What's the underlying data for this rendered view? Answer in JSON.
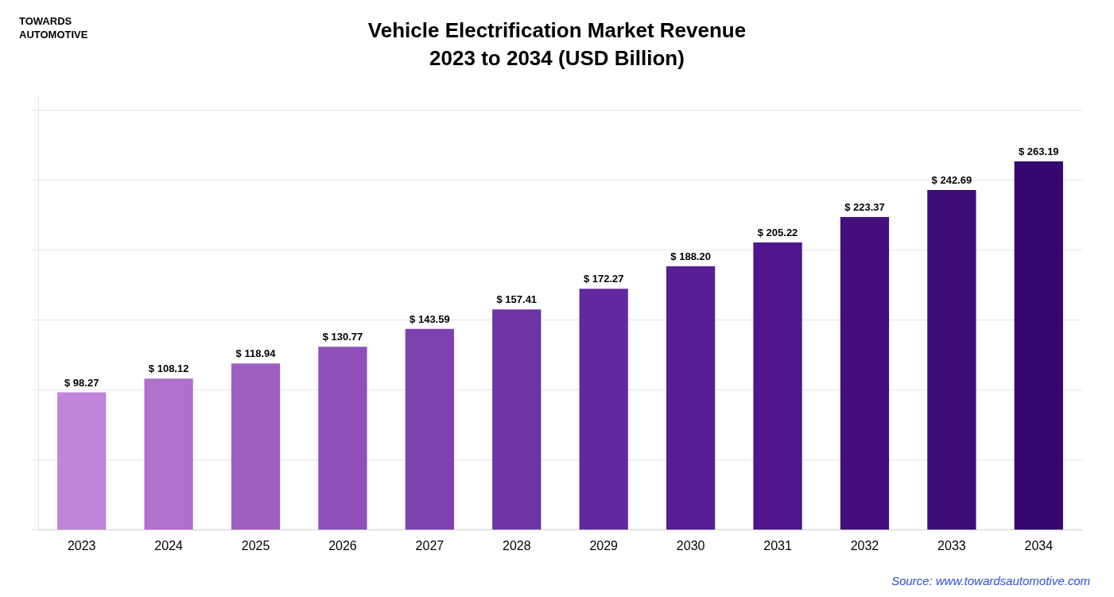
{
  "chart_data": {
    "type": "bar",
    "title": "Vehicle Electrification Market Revenue",
    "subtitle": "2023 to 2034 (USD Billion)",
    "categories": [
      "2023",
      "2024",
      "2025",
      "2026",
      "2027",
      "2028",
      "2029",
      "2030",
      "2031",
      "2032",
      "2033",
      "2034"
    ],
    "values": [
      98.27,
      108.12,
      118.94,
      130.77,
      143.59,
      157.41,
      172.27,
      188.2,
      205.22,
      223.37,
      242.69,
      263.19
    ],
    "value_labels": [
      "$ 98.27",
      "$ 108.12",
      "$ 118.94",
      "$ 130.77",
      "$ 143.59",
      "$ 157.41",
      "$ 172.27",
      "$ 188.20",
      "$ 205.22",
      "$ 223.37",
      "$ 242.69",
      "$ 263.19"
    ],
    "colors": [
      "#c084d8",
      "#b070cc",
      "#9e5ec0",
      "#8e50b8",
      "#7e42b0",
      "#6e34a8",
      "#62289e",
      "#581e94",
      "#4e168a",
      "#441080",
      "#3c0c78",
      "#340870"
    ],
    "ylim": [
      0,
      310
    ],
    "yticks": [
      0,
      50,
      100,
      150,
      200,
      250,
      300
    ],
    "grid": true,
    "data_labels": true,
    "tick_labels": "x",
    "annotations": [
      "TOWARDS",
      "AUTOMOTIVE",
      "Source: www.towardsautomotive.com"
    ]
  }
}
